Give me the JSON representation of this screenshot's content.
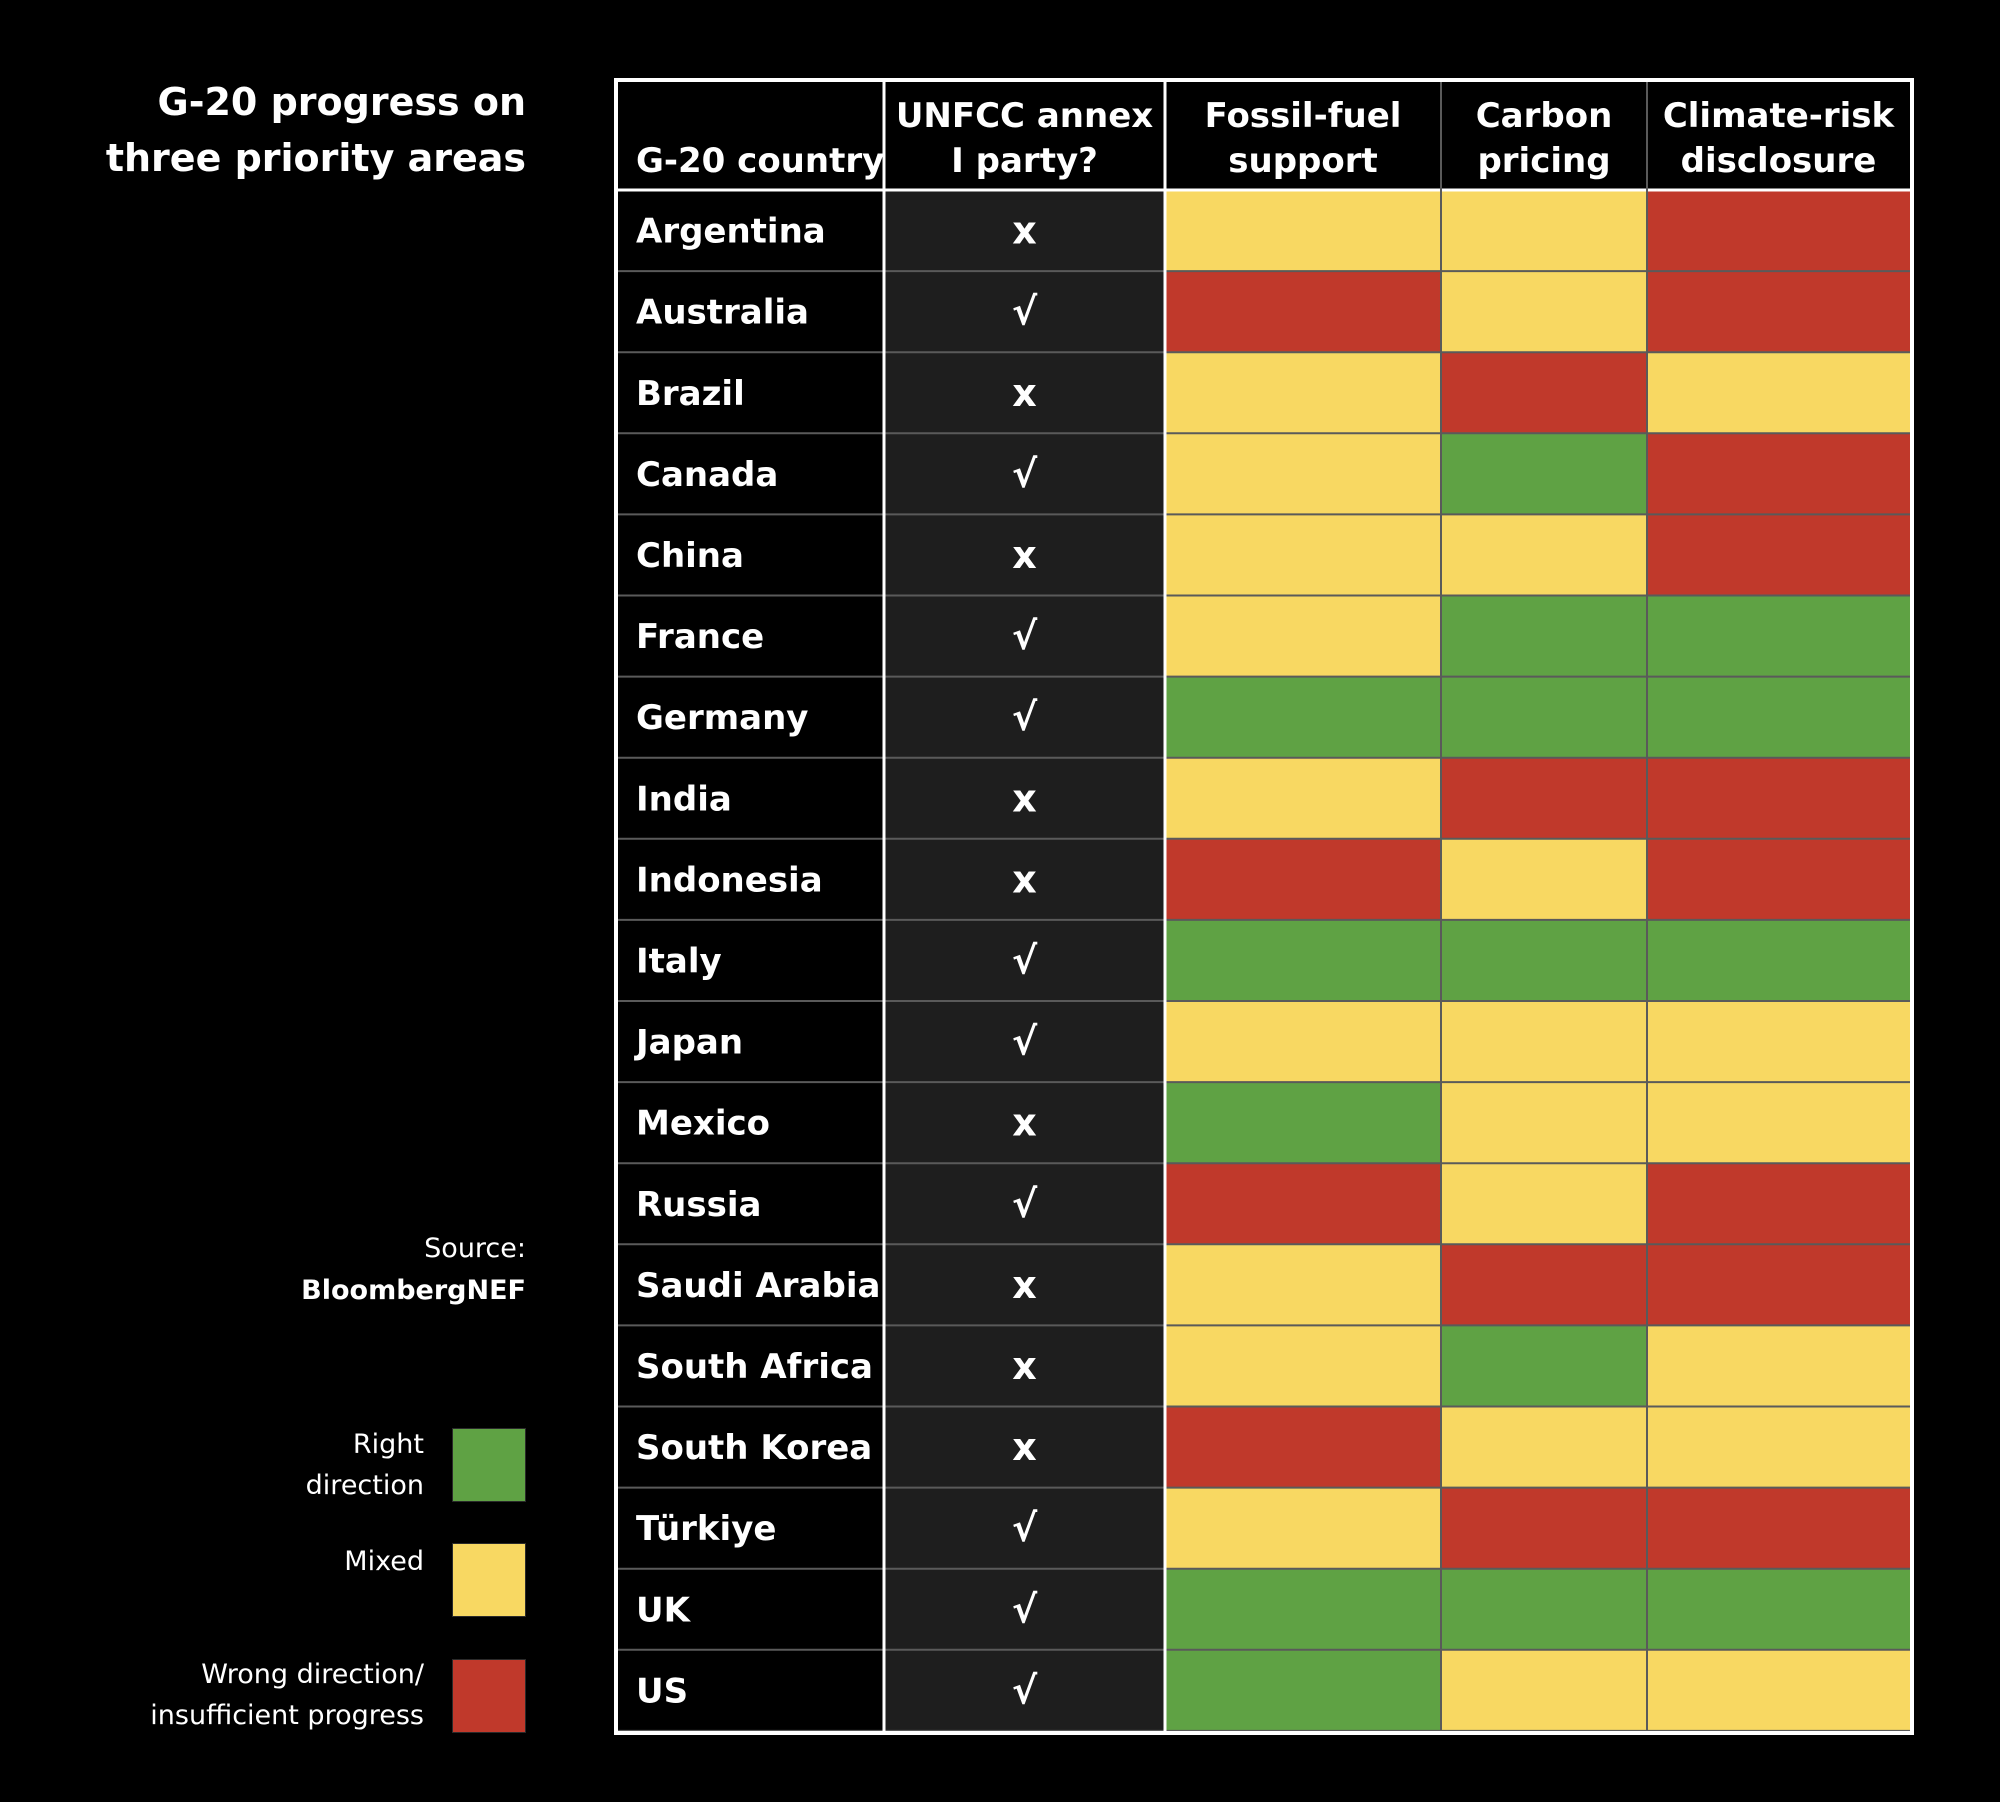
{
  "title": [
    "G-20 progress on",
    "three priority areas"
  ],
  "source": {
    "label": "Source:",
    "value": "BloombergNEF"
  },
  "colors": {
    "right_direction": "#5fa244",
    "mixed": "#f8d862",
    "wrong_direction": "#c0392b",
    "annex_column_bg": "#1e1e1e",
    "country_column_bg": "#000000",
    "gridline": "#5a5a5a"
  },
  "legend": [
    {
      "label": [
        "Right",
        "direction"
      ],
      "status": "green"
    },
    {
      "label": [
        "Mixed"
      ],
      "status": "yellow"
    },
    {
      "label": [
        "Wrong direction/",
        "insufficient progress"
      ],
      "status": "red"
    }
  ],
  "chart_data": {
    "type": "table",
    "headers": [
      [
        "G-20 country"
      ],
      [
        "UNFCC annex",
        "I party?"
      ],
      [
        "Fossil-fuel",
        "support"
      ],
      [
        "Carbon",
        "pricing"
      ],
      [
        "Climate-risk",
        "disclosure"
      ]
    ],
    "symbols": {
      "yes": "√",
      "no": "x"
    },
    "status_legend": {
      "green": "Right direction",
      "yellow": "Mixed",
      "red": "Wrong direction/ insufficient progress"
    },
    "rows": [
      {
        "country": "Argentina",
        "annex": "x",
        "fossil": "yellow",
        "carbon": "yellow",
        "climate": "red"
      },
      {
        "country": "Australia",
        "annex": "√",
        "fossil": "red",
        "carbon": "yellow",
        "climate": "red"
      },
      {
        "country": "Brazil",
        "annex": "x",
        "fossil": "yellow",
        "carbon": "red",
        "climate": "yellow"
      },
      {
        "country": "Canada",
        "annex": "√",
        "fossil": "yellow",
        "carbon": "green",
        "climate": "red"
      },
      {
        "country": "China",
        "annex": "x",
        "fossil": "yellow",
        "carbon": "yellow",
        "climate": "red"
      },
      {
        "country": "France",
        "annex": "√",
        "fossil": "yellow",
        "carbon": "green",
        "climate": "green"
      },
      {
        "country": "Germany",
        "annex": "√",
        "fossil": "green",
        "carbon": "green",
        "climate": "green"
      },
      {
        "country": "India",
        "annex": "x",
        "fossil": "yellow",
        "carbon": "red",
        "climate": "red"
      },
      {
        "country": "Indonesia",
        "annex": "x",
        "fossil": "red",
        "carbon": "yellow",
        "climate": "red"
      },
      {
        "country": "Italy",
        "annex": "√",
        "fossil": "green",
        "carbon": "green",
        "climate": "green"
      },
      {
        "country": "Japan",
        "annex": "√",
        "fossil": "yellow",
        "carbon": "yellow",
        "climate": "yellow"
      },
      {
        "country": "Mexico",
        "annex": "x",
        "fossil": "green",
        "carbon": "yellow",
        "climate": "yellow"
      },
      {
        "country": "Russia",
        "annex": "√",
        "fossil": "red",
        "carbon": "yellow",
        "climate": "red"
      },
      {
        "country": "Saudi Arabia",
        "annex": "x",
        "fossil": "yellow",
        "carbon": "red",
        "climate": "red"
      },
      {
        "country": "South Africa",
        "annex": "x",
        "fossil": "yellow",
        "carbon": "green",
        "climate": "yellow"
      },
      {
        "country": "South Korea",
        "annex": "x",
        "fossil": "red",
        "carbon": "yellow",
        "climate": "yellow"
      },
      {
        "country": "Türkiye",
        "annex": "√",
        "fossil": "yellow",
        "carbon": "red",
        "climate": "red"
      },
      {
        "country": "UK",
        "annex": "√",
        "fossil": "green",
        "carbon": "green",
        "climate": "green"
      },
      {
        "country": "US",
        "annex": "√",
        "fossil": "green",
        "carbon": "yellow",
        "climate": "yellow"
      }
    ]
  }
}
